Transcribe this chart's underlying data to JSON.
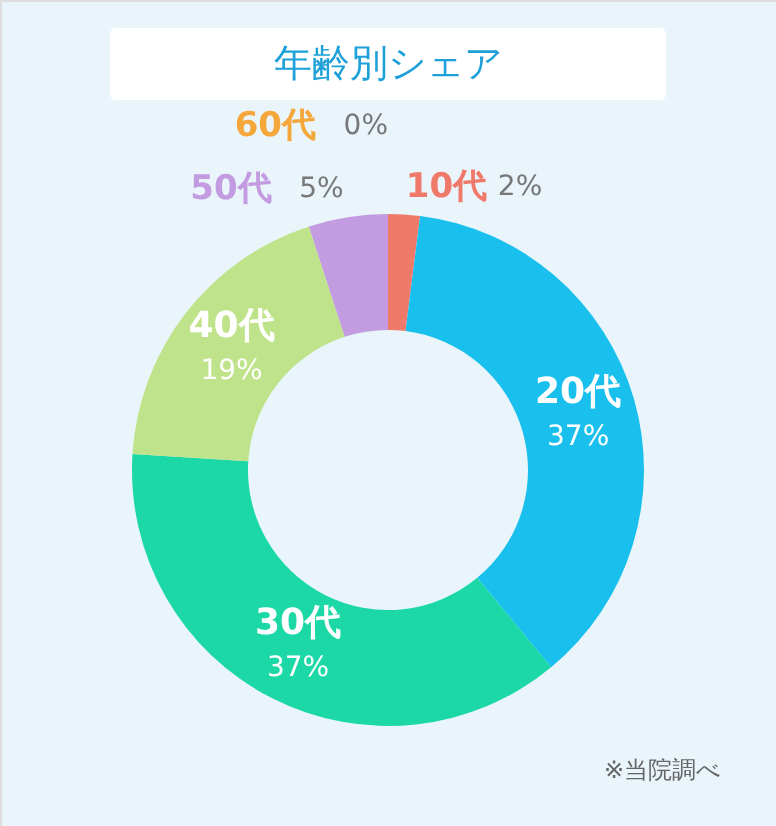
{
  "chart_data": {
    "type": "donut",
    "title": "年齢別シェア",
    "categories": [
      "10代",
      "20代",
      "30代",
      "40代",
      "50代",
      "60代"
    ],
    "values": [
      2,
      37,
      37,
      19,
      5,
      0
    ],
    "colors": [
      "#f07a6a",
      "#19c0ee",
      "#1bd8a6",
      "#bfe38a",
      "#c39be0",
      "#f5a73b"
    ],
    "value_labels": [
      "2%",
      "37%",
      "37%",
      "19%",
      "5%",
      "0%"
    ],
    "annotations": [
      "※当院調べ"
    ]
  }
}
